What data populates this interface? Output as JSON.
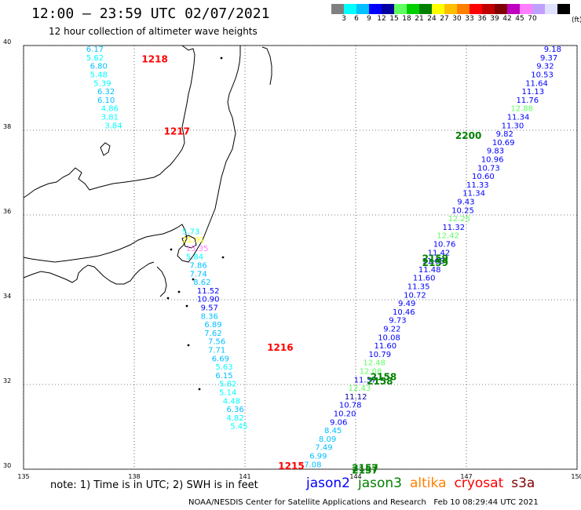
{
  "title": "12:00 – 23:59 UTC 02/07/2021",
  "subtitle": "12 hour collection of altimeter wave heights",
  "legend": {
    "unit": "(ft)",
    "colors": [
      "#808080",
      "#00ffff",
      "#00c0ff",
      "#0000ff",
      "#0000a0",
      "#60ff60",
      "#00d000",
      "#008000",
      "#ffff00",
      "#ffc000",
      "#ff8000",
      "#ff0000",
      "#c00000",
      "#800000",
      "#c000c0",
      "#ff80ff",
      "#c0a0ff",
      "#e0e0ff",
      "#000000"
    ],
    "labels": [
      "3",
      "6",
      "9",
      "12",
      "15",
      "18",
      "21",
      "24",
      "27",
      "30",
      "33",
      "36",
      "39",
      "42",
      "45",
      "70"
    ]
  },
  "map": {
    "lon_range": [
      135,
      150
    ],
    "lat_range": [
      30,
      40
    ],
    "lon_ticks": [
      "135",
      "138",
      "141",
      "144",
      "147",
      "150"
    ],
    "lat_ticks": [
      "30",
      "32",
      "34",
      "36",
      "38",
      "40"
    ],
    "coastline_color": "#000000"
  },
  "chart_data": {
    "type": "scatter",
    "unit": "ft",
    "tracks": [
      {
        "name": "cryosat-west",
        "color_key": "cryosat",
        "time_tags": [
          {
            "label": "1218",
            "lon": 138.2,
            "lat": 39.6
          },
          {
            "label": "1217",
            "lon": 138.8,
            "lat": 37.9
          },
          {
            "label": "1216",
            "lon": 141.6,
            "lat": 32.8
          },
          {
            "label": "1215",
            "lon": 141.9,
            "lat": 30.0
          }
        ],
        "points": [
          {
            "lon": 136.7,
            "lat": 39.85,
            "value": "6.17",
            "color": "#00c0ff"
          },
          {
            "lon": 136.7,
            "lat": 39.65,
            "value": "5.62",
            "color": "#00ffff"
          },
          {
            "lon": 136.8,
            "lat": 39.45,
            "value": "6.80",
            "color": "#00c0ff"
          },
          {
            "lon": 136.8,
            "lat": 39.25,
            "value": "5.48",
            "color": "#00ffff"
          },
          {
            "lon": 136.9,
            "lat": 39.05,
            "value": "5.39",
            "color": "#00ffff"
          },
          {
            "lon": 137.0,
            "lat": 38.85,
            "value": "6.32",
            "color": "#00c0ff"
          },
          {
            "lon": 137.0,
            "lat": 38.65,
            "value": "6.10",
            "color": "#00c0ff"
          },
          {
            "lon": 137.1,
            "lat": 38.45,
            "value": "4.86",
            "color": "#00ffff"
          },
          {
            "lon": 137.1,
            "lat": 38.25,
            "value": "3.81",
            "color": "#00ffff"
          },
          {
            "lon": 137.2,
            "lat": 38.05,
            "value": "3.84",
            "color": "#00ffff"
          },
          {
            "lon": 139.3,
            "lat": 35.55,
            "value": "5.73",
            "color": "#00ffff"
          },
          {
            "lon": 139.3,
            "lat": 35.35,
            "value": "21.91",
            "color": "#ffff00"
          },
          {
            "lon": 139.4,
            "lat": 35.15,
            "value": "15.35",
            "color": "#ff80ff"
          },
          {
            "lon": 139.4,
            "lat": 34.95,
            "value": "5.84",
            "color": "#00ffff"
          },
          {
            "lon": 139.5,
            "lat": 34.75,
            "value": "7.86",
            "color": "#00c0ff"
          },
          {
            "lon": 139.5,
            "lat": 34.55,
            "value": "7.74",
            "color": "#00c0ff"
          },
          {
            "lon": 139.6,
            "lat": 34.35,
            "value": "8.62",
            "color": "#00c0ff"
          },
          {
            "lon": 139.7,
            "lat": 34.15,
            "value": "11.52",
            "color": "#0000ff"
          },
          {
            "lon": 139.7,
            "lat": 33.95,
            "value": "10.90",
            "color": "#0000ff"
          },
          {
            "lon": 139.8,
            "lat": 33.75,
            "value": "9.57",
            "color": "#0000ff"
          },
          {
            "lon": 139.8,
            "lat": 33.55,
            "value": "8.36",
            "color": "#00c0ff"
          },
          {
            "lon": 139.9,
            "lat": 33.35,
            "value": "6.89",
            "color": "#00c0ff"
          },
          {
            "lon": 139.9,
            "lat": 33.15,
            "value": "7.62",
            "color": "#00c0ff"
          },
          {
            "lon": 140.0,
            "lat": 32.95,
            "value": "7.56",
            "color": "#00c0ff"
          },
          {
            "lon": 140.0,
            "lat": 32.75,
            "value": "7.71",
            "color": "#00c0ff"
          },
          {
            "lon": 140.1,
            "lat": 32.55,
            "value": "6.69",
            "color": "#00c0ff"
          },
          {
            "lon": 140.2,
            "lat": 32.35,
            "value": "5.63",
            "color": "#00ffff"
          },
          {
            "lon": 140.2,
            "lat": 32.15,
            "value": "6.15",
            "color": "#00c0ff"
          },
          {
            "lon": 140.3,
            "lat": 31.95,
            "value": "5.82",
            "color": "#00ffff"
          },
          {
            "lon": 140.3,
            "lat": 31.75,
            "value": "5.14",
            "color": "#00ffff"
          },
          {
            "lon": 140.4,
            "lat": 31.55,
            "value": "4.48",
            "color": "#00ffff"
          },
          {
            "lon": 140.5,
            "lat": 31.35,
            "value": "6.36",
            "color": "#00c0ff"
          },
          {
            "lon": 140.5,
            "lat": 31.15,
            "value": "4.82",
            "color": "#00ffff"
          },
          {
            "lon": 140.6,
            "lat": 30.95,
            "value": "5.45",
            "color": "#00ffff"
          }
        ]
      },
      {
        "name": "jason-east",
        "color_key": "jason3",
        "time_tags": [
          {
            "label": "2200",
            "lon": 146.7,
            "lat": 37.8
          },
          {
            "label": "2159",
            "lon": 145.8,
            "lat": 34.9
          },
          {
            "label": "2159",
            "lon": 145.8,
            "lat": 34.8
          },
          {
            "label": "2158",
            "lon": 144.4,
            "lat": 32.1
          },
          {
            "label": "2158",
            "lon": 144.3,
            "lat": 32.0
          },
          {
            "label": "2157",
            "lon": 143.9,
            "lat": 29.95
          },
          {
            "label": "2157",
            "lon": 143.9,
            "lat": 29.9
          }
        ],
        "points": [
          {
            "lon": 149.1,
            "lat": 39.85,
            "value": "9.18",
            "color": "#0000ff"
          },
          {
            "lon": 149.0,
            "lat": 39.65,
            "value": "9.37",
            "color": "#0000ff"
          },
          {
            "lon": 148.9,
            "lat": 39.45,
            "value": "9.32",
            "color": "#0000ff"
          },
          {
            "lon": 148.75,
            "lat": 39.25,
            "value": "10.53",
            "color": "#0000ff"
          },
          {
            "lon": 148.6,
            "lat": 39.05,
            "value": "11.64",
            "color": "#0000ff"
          },
          {
            "lon": 148.5,
            "lat": 38.85,
            "value": "11.13",
            "color": "#0000ff"
          },
          {
            "lon": 148.35,
            "lat": 38.65,
            "value": "11.76",
            "color": "#0000ff"
          },
          {
            "lon": 148.2,
            "lat": 38.45,
            "value": "12.88",
            "color": "#60ff60"
          },
          {
            "lon": 148.1,
            "lat": 38.25,
            "value": "11.34",
            "color": "#0000ff"
          },
          {
            "lon": 147.95,
            "lat": 38.05,
            "value": "11.30",
            "color": "#0000ff"
          },
          {
            "lon": 147.8,
            "lat": 37.85,
            "value": "9.82",
            "color": "#0000ff"
          },
          {
            "lon": 147.7,
            "lat": 37.65,
            "value": "10.69",
            "color": "#0000ff"
          },
          {
            "lon": 147.55,
            "lat": 37.45,
            "value": "9.83",
            "color": "#0000ff"
          },
          {
            "lon": 147.4,
            "lat": 37.25,
            "value": "10.96",
            "color": "#0000ff"
          },
          {
            "lon": 147.3,
            "lat": 37.05,
            "value": "10.73",
            "color": "#0000ff"
          },
          {
            "lon": 147.15,
            "lat": 36.85,
            "value": "10.60",
            "color": "#0000ff"
          },
          {
            "lon": 147.0,
            "lat": 36.65,
            "value": "11.33",
            "color": "#0000ff"
          },
          {
            "lon": 146.9,
            "lat": 36.45,
            "value": "11.34",
            "color": "#0000ff"
          },
          {
            "lon": 146.75,
            "lat": 36.25,
            "value": "9.43",
            "color": "#0000ff"
          },
          {
            "lon": 146.6,
            "lat": 36.05,
            "value": "10.25",
            "color": "#0000ff"
          },
          {
            "lon": 146.5,
            "lat": 35.85,
            "value": "12.25",
            "color": "#60ff60"
          },
          {
            "lon": 146.35,
            "lat": 35.65,
            "value": "11.32",
            "color": "#0000ff"
          },
          {
            "lon": 146.2,
            "lat": 35.45,
            "value": "12.42",
            "color": "#60ff60"
          },
          {
            "lon": 146.1,
            "lat": 35.25,
            "value": "10.76",
            "color": "#0000ff"
          },
          {
            "lon": 145.95,
            "lat": 35.05,
            "value": "11.42",
            "color": "#0000ff"
          },
          {
            "lon": 145.8,
            "lat": 34.85,
            "value": "11.68",
            "color": "#0000ff"
          },
          {
            "lon": 145.7,
            "lat": 34.65,
            "value": "11.48",
            "color": "#0000ff"
          },
          {
            "lon": 145.55,
            "lat": 34.45,
            "value": "11.60",
            "color": "#0000ff"
          },
          {
            "lon": 145.4,
            "lat": 34.25,
            "value": "11.35",
            "color": "#0000ff"
          },
          {
            "lon": 145.3,
            "lat": 34.05,
            "value": "10.72",
            "color": "#0000ff"
          },
          {
            "lon": 145.15,
            "lat": 33.85,
            "value": "9.49",
            "color": "#0000ff"
          },
          {
            "lon": 145.0,
            "lat": 33.65,
            "value": "10.46",
            "color": "#0000ff"
          },
          {
            "lon": 144.9,
            "lat": 33.45,
            "value": "9.73",
            "color": "#0000ff"
          },
          {
            "lon": 144.75,
            "lat": 33.25,
            "value": "9.22",
            "color": "#0000ff"
          },
          {
            "lon": 144.6,
            "lat": 33.05,
            "value": "10.08",
            "color": "#0000ff"
          },
          {
            "lon": 144.5,
            "lat": 32.85,
            "value": "11.60",
            "color": "#0000ff"
          },
          {
            "lon": 144.35,
            "lat": 32.65,
            "value": "10.79",
            "color": "#0000ff"
          },
          {
            "lon": 144.2,
            "lat": 32.45,
            "value": "12.48",
            "color": "#60ff60"
          },
          {
            "lon": 144.1,
            "lat": 32.25,
            "value": "12.08",
            "color": "#60ff60"
          },
          {
            "lon": 143.95,
            "lat": 32.05,
            "value": "11.37",
            "color": "#0000ff"
          },
          {
            "lon": 143.8,
            "lat": 31.85,
            "value": "12.43",
            "color": "#60ff60"
          },
          {
            "lon": 143.7,
            "lat": 31.65,
            "value": "11.12",
            "color": "#0000a0"
          },
          {
            "lon": 143.55,
            "lat": 31.45,
            "value": "10.78",
            "color": "#0000ff"
          },
          {
            "lon": 143.4,
            "lat": 31.25,
            "value": "10.20",
            "color": "#0000ff"
          },
          {
            "lon": 143.3,
            "lat": 31.05,
            "value": "9.06",
            "color": "#0000ff"
          },
          {
            "lon": 143.15,
            "lat": 30.85,
            "value": "8.45",
            "color": "#00c0ff"
          },
          {
            "lon": 143.0,
            "lat": 30.65,
            "value": "8.09",
            "color": "#00c0ff"
          },
          {
            "lon": 142.9,
            "lat": 30.45,
            "value": "7.49",
            "color": "#00c0ff"
          },
          {
            "lon": 142.75,
            "lat": 30.25,
            "value": "6.99",
            "color": "#00c0ff"
          },
          {
            "lon": 142.6,
            "lat": 30.05,
            "value": "7.08",
            "color": "#00c0ff"
          }
        ]
      }
    ]
  },
  "note": "note: 1) Time is in UTC; 2) SWH is in feet",
  "satellites": [
    {
      "label": "jason2",
      "color": "#0000ff"
    },
    {
      "label": "jason3",
      "color": "#008000"
    },
    {
      "label": "altika",
      "color": "#ff8000"
    },
    {
      "label": "cryosat",
      "color": "#ff0000"
    },
    {
      "label": "s3a",
      "color": "#800000"
    }
  ],
  "footer": "NOAA/NESDIS Center for Satellite Applications and Research   Feb 10 08:29:44 UTC 2021"
}
